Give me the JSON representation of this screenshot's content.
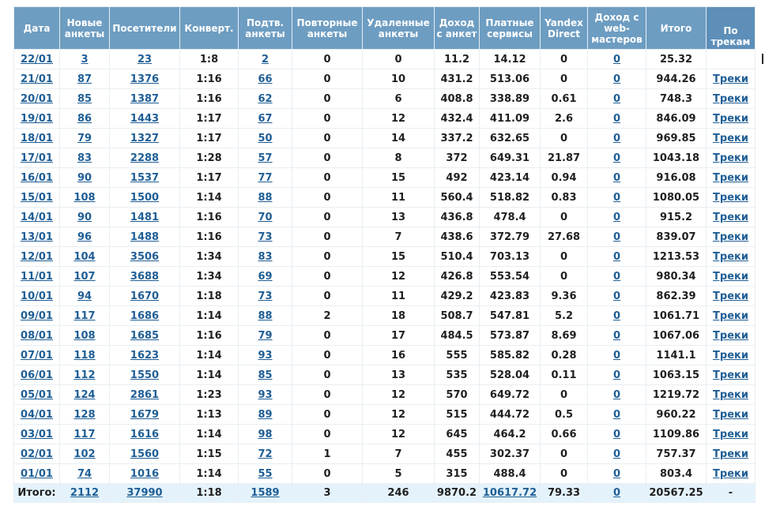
{
  "headers": {
    "date": "Дата",
    "new_profiles": "Новые анкеты",
    "visitors": "Посетители",
    "conversion": "Конверт.",
    "confirmed": "Подтв. анкеты",
    "repeat": "Повторные анкеты",
    "deleted": "Удаленные анкеты",
    "profile_income": "Доход с анкет",
    "paid_services": "Платные сервисы",
    "yandex_direct": "Yandex Direct",
    "webmaster_income": "Доход с web-мастеров",
    "total": "Итого",
    "by_tracks": "По трекам"
  },
  "rows": [
    {
      "date": "22/01",
      "new": "3",
      "visitors": "23",
      "conv": "1:8",
      "confirmed": "2",
      "repeat": "0",
      "deleted": "0",
      "income": "11.2",
      "paid": "14.12",
      "yandex": "0",
      "web": "0",
      "total": "25.32",
      "tracks": ""
    },
    {
      "date": "21/01",
      "new": "87",
      "visitors": "1376",
      "conv": "1:16",
      "confirmed": "66",
      "repeat": "0",
      "deleted": "10",
      "income": "431.2",
      "paid": "513.06",
      "yandex": "0",
      "web": "0",
      "total": "944.26",
      "tracks": "Треки"
    },
    {
      "date": "20/01",
      "new": "85",
      "visitors": "1387",
      "conv": "1:16",
      "confirmed": "62",
      "repeat": "0",
      "deleted": "6",
      "income": "408.8",
      "paid": "338.89",
      "yandex": "0.61",
      "web": "0",
      "total": "748.3",
      "tracks": "Треки"
    },
    {
      "date": "19/01",
      "new": "86",
      "visitors": "1443",
      "conv": "1:17",
      "confirmed": "67",
      "repeat": "0",
      "deleted": "12",
      "income": "432.4",
      "paid": "411.09",
      "yandex": "2.6",
      "web": "0",
      "total": "846.09",
      "tracks": "Треки"
    },
    {
      "date": "18/01",
      "new": "79",
      "visitors": "1327",
      "conv": "1:17",
      "confirmed": "50",
      "repeat": "0",
      "deleted": "14",
      "income": "337.2",
      "paid": "632.65",
      "yandex": "0",
      "web": "0",
      "total": "969.85",
      "tracks": "Треки"
    },
    {
      "date": "17/01",
      "new": "83",
      "visitors": "2288",
      "conv": "1:28",
      "confirmed": "57",
      "repeat": "0",
      "deleted": "8",
      "income": "372",
      "paid": "649.31",
      "yandex": "21.87",
      "web": "0",
      "total": "1043.18",
      "tracks": "Треки"
    },
    {
      "date": "16/01",
      "new": "90",
      "visitors": "1537",
      "conv": "1:17",
      "confirmed": "77",
      "repeat": "0",
      "deleted": "15",
      "income": "492",
      "paid": "423.14",
      "yandex": "0.94",
      "web": "0",
      "total": "916.08",
      "tracks": "Треки"
    },
    {
      "date": "15/01",
      "new": "108",
      "visitors": "1500",
      "conv": "1:14",
      "confirmed": "88",
      "repeat": "0",
      "deleted": "11",
      "income": "560.4",
      "paid": "518.82",
      "yandex": "0.83",
      "web": "0",
      "total": "1080.05",
      "tracks": "Треки"
    },
    {
      "date": "14/01",
      "new": "90",
      "visitors": "1481",
      "conv": "1:16",
      "confirmed": "70",
      "repeat": "0",
      "deleted": "13",
      "income": "436.8",
      "paid": "478.4",
      "yandex": "0",
      "web": "0",
      "total": "915.2",
      "tracks": "Треки"
    },
    {
      "date": "13/01",
      "new": "96",
      "visitors": "1488",
      "conv": "1:16",
      "confirmed": "73",
      "repeat": "0",
      "deleted": "7",
      "income": "438.6",
      "paid": "372.79",
      "yandex": "27.68",
      "web": "0",
      "total": "839.07",
      "tracks": "Треки"
    },
    {
      "date": "12/01",
      "new": "104",
      "visitors": "3506",
      "conv": "1:34",
      "confirmed": "83",
      "repeat": "0",
      "deleted": "15",
      "income": "510.4",
      "paid": "703.13",
      "yandex": "0",
      "web": "0",
      "total": "1213.53",
      "tracks": "Треки"
    },
    {
      "date": "11/01",
      "new": "107",
      "visitors": "3688",
      "conv": "1:34",
      "confirmed": "69",
      "repeat": "0",
      "deleted": "12",
      "income": "426.8",
      "paid": "553.54",
      "yandex": "0",
      "web": "0",
      "total": "980.34",
      "tracks": "Треки"
    },
    {
      "date": "10/01",
      "new": "94",
      "visitors": "1670",
      "conv": "1:18",
      "confirmed": "73",
      "repeat": "0",
      "deleted": "11",
      "income": "429.2",
      "paid": "423.83",
      "yandex": "9.36",
      "web": "0",
      "total": "862.39",
      "tracks": "Треки"
    },
    {
      "date": "09/01",
      "new": "117",
      "visitors": "1686",
      "conv": "1:14",
      "confirmed": "88",
      "repeat": "2",
      "deleted": "18",
      "income": "508.7",
      "paid": "547.81",
      "yandex": "5.2",
      "web": "0",
      "total": "1061.71",
      "tracks": "Треки"
    },
    {
      "date": "08/01",
      "new": "108",
      "visitors": "1685",
      "conv": "1:16",
      "confirmed": "79",
      "repeat": "0",
      "deleted": "17",
      "income": "484.5",
      "paid": "573.87",
      "yandex": "8.69",
      "web": "0",
      "total": "1067.06",
      "tracks": "Треки"
    },
    {
      "date": "07/01",
      "new": "118",
      "visitors": "1623",
      "conv": "1:14",
      "confirmed": "93",
      "repeat": "0",
      "deleted": "16",
      "income": "555",
      "paid": "585.82",
      "yandex": "0.28",
      "web": "0",
      "total": "1141.1",
      "tracks": "Треки"
    },
    {
      "date": "06/01",
      "new": "112",
      "visitors": "1550",
      "conv": "1:14",
      "confirmed": "85",
      "repeat": "0",
      "deleted": "13",
      "income": "535",
      "paid": "528.04",
      "yandex": "0.11",
      "web": "0",
      "total": "1063.15",
      "tracks": "Треки"
    },
    {
      "date": "05/01",
      "new": "124",
      "visitors": "2861",
      "conv": "1:23",
      "confirmed": "93",
      "repeat": "0",
      "deleted": "12",
      "income": "570",
      "paid": "649.72",
      "yandex": "0",
      "web": "0",
      "total": "1219.72",
      "tracks": "Треки"
    },
    {
      "date": "04/01",
      "new": "128",
      "visitors": "1679",
      "conv": "1:13",
      "confirmed": "89",
      "repeat": "0",
      "deleted": "12",
      "income": "515",
      "paid": "444.72",
      "yandex": "0.5",
      "web": "0",
      "total": "960.22",
      "tracks": "Треки"
    },
    {
      "date": "03/01",
      "new": "117",
      "visitors": "1616",
      "conv": "1:14",
      "confirmed": "98",
      "repeat": "0",
      "deleted": "12",
      "income": "645",
      "paid": "464.2",
      "yandex": "0.66",
      "web": "0",
      "total": "1109.86",
      "tracks": "Треки"
    },
    {
      "date": "02/01",
      "new": "102",
      "visitors": "1560",
      "conv": "1:15",
      "confirmed": "72",
      "repeat": "1",
      "deleted": "7",
      "income": "455",
      "paid": "302.37",
      "yandex": "0",
      "web": "0",
      "total": "757.37",
      "tracks": "Треки"
    },
    {
      "date": "01/01",
      "new": "74",
      "visitors": "1016",
      "conv": "1:14",
      "confirmed": "55",
      "repeat": "0",
      "deleted": "5",
      "income": "315",
      "paid": "488.4",
      "yandex": "0",
      "web": "0",
      "total": "803.4",
      "tracks": "Треки"
    }
  ],
  "totals": {
    "label": "Итого:",
    "new": "2112",
    "visitors": "37990",
    "conv": "1:18",
    "confirmed": "1589",
    "repeat": "3",
    "deleted": "246",
    "income": "9870.2",
    "paid": "10617.72",
    "yandex": "79.33",
    "web": "0",
    "total": "20567.25",
    "tracks": "-"
  },
  "colors": {
    "header_bg": "#6e9dc2",
    "link": "#1f5e95",
    "total_row_bg": "#e4f3fb"
  }
}
